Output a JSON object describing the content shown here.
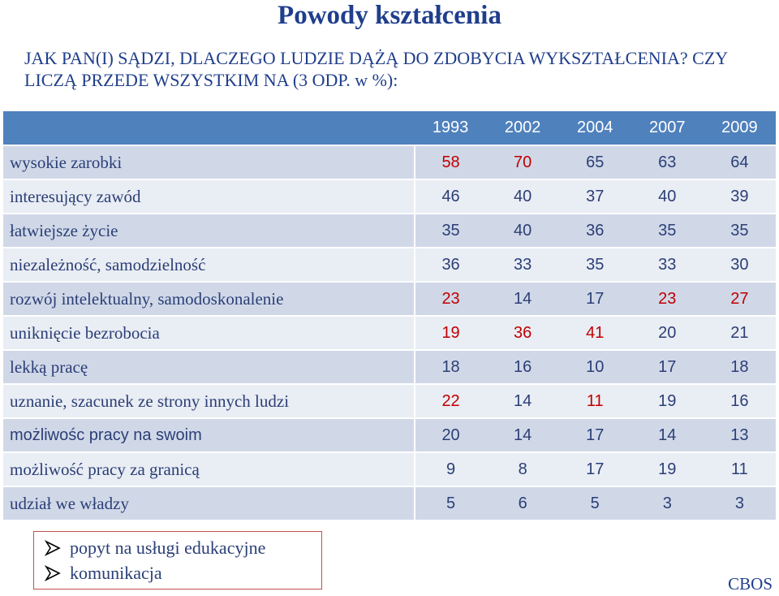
{
  "title": "Powody kształcenia",
  "question": "JAK PAN(I) SĄDZI, DLACZEGO LUDZIE DĄŻĄ DO ZDOBYCIA WYKSZTAŁCENIA? CZY LICZĄ PRZEDE WSZYSTKIM NA (3 ODP. w %):",
  "table": {
    "years": [
      "1993",
      "2002",
      "2004",
      "2007",
      "2009"
    ],
    "rows": [
      {
        "label": "wysokie zarobki",
        "values": [
          "58",
          "70",
          "65",
          "63",
          "64"
        ],
        "red": [
          true,
          true,
          false,
          false,
          false
        ]
      },
      {
        "label": "interesujący zawód",
        "values": [
          "46",
          "40",
          "37",
          "40",
          "39"
        ],
        "red": [
          false,
          false,
          false,
          false,
          false
        ]
      },
      {
        "label": "łatwiejsze życie",
        "values": [
          "35",
          "40",
          "36",
          "35",
          "35"
        ],
        "red": [
          false,
          false,
          false,
          false,
          false
        ]
      },
      {
        "label": "niezależność, samodzielność",
        "values": [
          "36",
          "33",
          "35",
          "33",
          "30"
        ],
        "red": [
          false,
          false,
          false,
          false,
          false
        ]
      },
      {
        "label": "rozwój intelektualny, samodoskonalenie",
        "values": [
          "23",
          "14",
          "17",
          "23",
          "27"
        ],
        "red": [
          true,
          false,
          false,
          true,
          true
        ]
      },
      {
        "label": "uniknięcie bezrobocia",
        "values": [
          "19",
          "36",
          "41",
          "20",
          "21"
        ],
        "red": [
          true,
          true,
          true,
          false,
          false
        ]
      },
      {
        "label": "lekką pracę",
        "values": [
          "18",
          "16",
          "10",
          "17",
          "18"
        ],
        "red": [
          false,
          false,
          false,
          false,
          false
        ]
      },
      {
        "label": "uznanie, szacunek ze strony innych ludzi",
        "values": [
          "22",
          "14",
          "11",
          "19",
          "16"
        ],
        "red": [
          true,
          false,
          true,
          false,
          false
        ]
      },
      {
        "label": "możliwośc pracy na swoim",
        "values": [
          "20",
          "14",
          "17",
          "14",
          "13"
        ],
        "red": [
          false,
          false,
          false,
          false,
          false
        ]
      },
      {
        "label": "możliwość pracy za granicą",
        "values": [
          "9",
          "8",
          "17",
          "19",
          "11"
        ],
        "red": [
          false,
          false,
          false,
          false,
          false
        ]
      },
      {
        "label": "udział we władzy",
        "values": [
          "5",
          "6",
          "5",
          "3",
          "3"
        ],
        "red": [
          false,
          false,
          false,
          false,
          false
        ]
      }
    ]
  },
  "notes": [
    "popyt na usługi edukacyjne",
    "komunikacja"
  ],
  "source": "CBOS",
  "colors": {
    "header": "#4f81bd",
    "red": "#c00000",
    "title": "#1f3e8c"
  }
}
